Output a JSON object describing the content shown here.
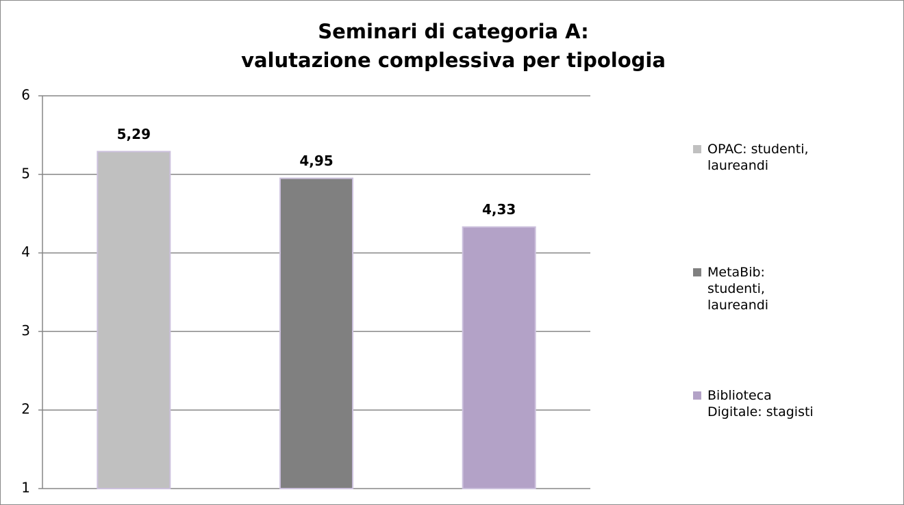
{
  "chart_data": {
    "type": "bar",
    "title": [
      "Seminari di categoria A:",
      "valutazione complessiva per tipologia"
    ],
    "categories": [
      null
    ],
    "series": [
      {
        "name": "OPAC: studenti, laureandi",
        "color": "#c0c0c0",
        "values": [
          5.29
        ],
        "value_labels": [
          "5,29"
        ]
      },
      {
        "name": "MetaBib: studenti, laureandi",
        "color": "#808080",
        "values": [
          4.95
        ],
        "value_labels": [
          "4,95"
        ]
      },
      {
        "name": "Biblioteca Digitale: stagisti",
        "color": "#b3a2c7",
        "values": [
          4.33
        ],
        "value_labels": [
          "4,33"
        ]
      }
    ],
    "ylim": [
      1,
      6
    ],
    "yticks": [
      1,
      2,
      3,
      4,
      5,
      6
    ],
    "grid": true,
    "legend": "right"
  }
}
